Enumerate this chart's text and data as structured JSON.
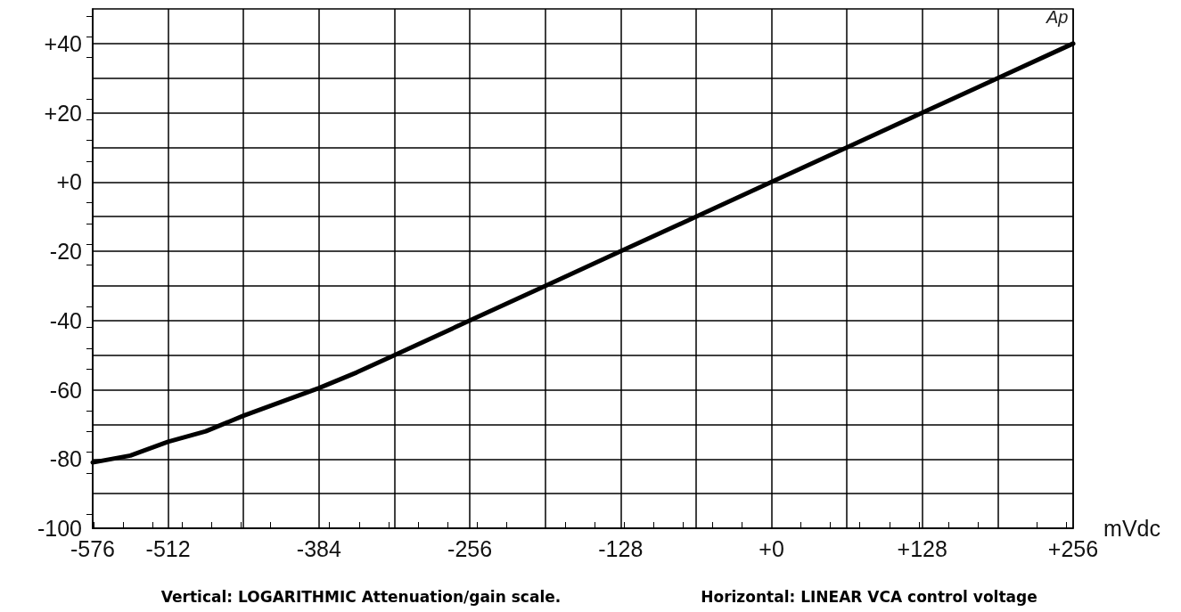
{
  "chart_data": {
    "type": "line",
    "xlabel": "mVdc",
    "x": [
      -576,
      -544,
      -512,
      -480,
      -448,
      -416,
      -384,
      -352,
      -320,
      -256,
      -192,
      -128,
      -64,
      0,
      64,
      128,
      192,
      256
    ],
    "series": [
      {
        "color": "#000000",
        "values": [
          -81,
          -79,
          -75,
          -72,
          -67.5,
          -63.5,
          -59.5,
          -55,
          -50,
          -40,
          -30,
          -20,
          -10,
          0,
          10,
          20,
          30,
          40
        ]
      }
    ],
    "xlim": [
      -576,
      256
    ],
    "xticks": [
      -576,
      -512,
      {
        "value": -448,
        "label": null
      },
      -384,
      {
        "value": -320,
        "label": null
      },
      -256,
      {
        "value": -192,
        "label": null
      },
      -128,
      {
        "value": -64,
        "label": null
      },
      {
        "value": 0,
        "label": "+0"
      },
      {
        "value": 64,
        "label": null
      },
      {
        "value": 128,
        "label": "+128"
      },
      {
        "value": 192,
        "label": null
      },
      {
        "value": 256,
        "label": "+256"
      }
    ],
    "ylim": [
      -100,
      50
    ],
    "yticks": [
      -100,
      {
        "value": -90,
        "label": null
      },
      -80,
      {
        "value": -70,
        "label": null
      },
      -60,
      {
        "value": -50,
        "label": null
      },
      -40,
      {
        "value": -30,
        "label": null
      },
      -20,
      {
        "value": -10,
        "label": null
      },
      {
        "value": 0,
        "label": "+0"
      },
      {
        "value": 10,
        "label": null
      },
      {
        "value": 20,
        "label": "+20"
      },
      {
        "value": 30,
        "label": null
      },
      {
        "value": 40,
        "label": "+40"
      }
    ],
    "grid": true,
    "marker": "none",
    "line_style": "solid",
    "annotations": [
      {
        "text": "Ap",
        "x": 256,
        "y": 40
      },
      "Vertical: LOGARITHMIC Attenuation/gain scale.",
      "Horizontal: LINEAR VCA control voltage"
    ]
  }
}
